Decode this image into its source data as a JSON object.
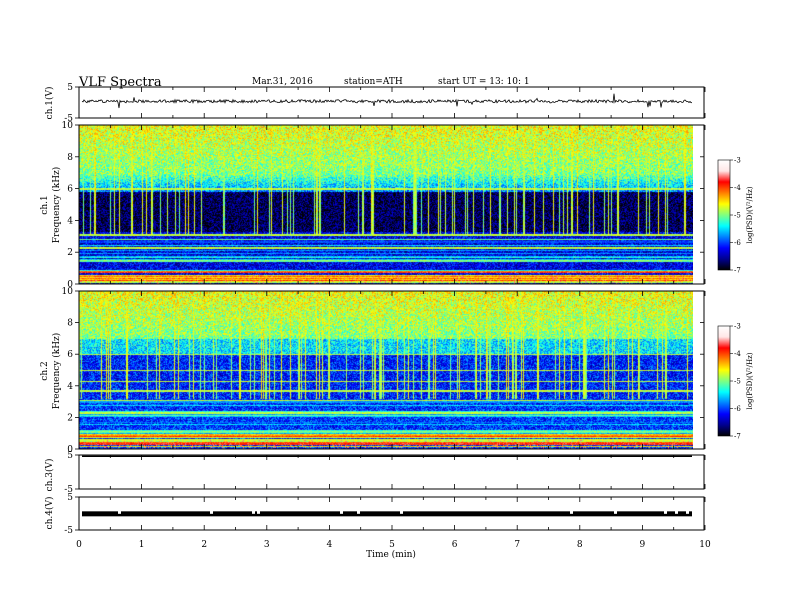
{
  "header": {
    "title": "VLF  Spectra",
    "date": "Mar.31, 2016",
    "station": "station=ATH",
    "start": "start  UT  =   13: 10: 1"
  },
  "chart_data": [
    {
      "type": "line",
      "name": "ch1-waveform",
      "ylabel": "ch.1(V)",
      "ylim": [
        -5,
        5
      ],
      "yticks": [
        "5",
        "-5"
      ],
      "xlim": [
        0,
        10
      ],
      "baseline": 0.4,
      "noise_amplitude": 0.5
    },
    {
      "type": "heatmap",
      "name": "ch1-spectrogram",
      "ylabel": [
        "ch.1",
        "Frequency  (kHz)"
      ],
      "ylim": [
        0,
        10
      ],
      "yticks": [
        "0",
        "2",
        "4",
        "6",
        "8",
        "10"
      ],
      "xlim": [
        0,
        9.8
      ],
      "colorbar": {
        "label": "log(PSD)(V²/Hz)",
        "range": [
          -7,
          -3
        ],
        "ticks": [
          "-3",
          "-4",
          "-5",
          "-6",
          "-7"
        ]
      }
    },
    {
      "type": "heatmap",
      "name": "ch2-spectrogram",
      "ylabel": [
        "ch.2",
        "Frequency  (kHz)"
      ],
      "ylim": [
        0,
        10
      ],
      "yticks": [
        "0",
        "2",
        "4",
        "6",
        "8",
        "10"
      ],
      "xlim": [
        0,
        9.8
      ],
      "colorbar": {
        "label": "log(PSD)(V²/Hz)",
        "range": [
          -7,
          -3
        ],
        "ticks": [
          "-3",
          "-4",
          "-5",
          "-6",
          "-7"
        ]
      }
    },
    {
      "type": "line",
      "name": "ch3-waveform",
      "ylabel": "ch.3(V)",
      "ylim": [
        -5,
        5
      ],
      "yticks": [
        "5",
        "-5"
      ],
      "xlim": [
        0,
        10
      ],
      "baseline": 4.6
    },
    {
      "type": "line",
      "name": "ch4-waveform",
      "ylabel": "ch.4(V)",
      "ylim": [
        -5,
        5
      ],
      "yticks": [
        "5",
        "-5"
      ],
      "xlim": [
        0,
        10
      ],
      "baseline": -0.1
    }
  ],
  "xaxis": {
    "label": "Time  (min)",
    "ticks": [
      "0",
      "1",
      "2",
      "3",
      "4",
      "5",
      "6",
      "7",
      "8",
      "9",
      "10"
    ],
    "range": [
      0,
      10
    ]
  }
}
